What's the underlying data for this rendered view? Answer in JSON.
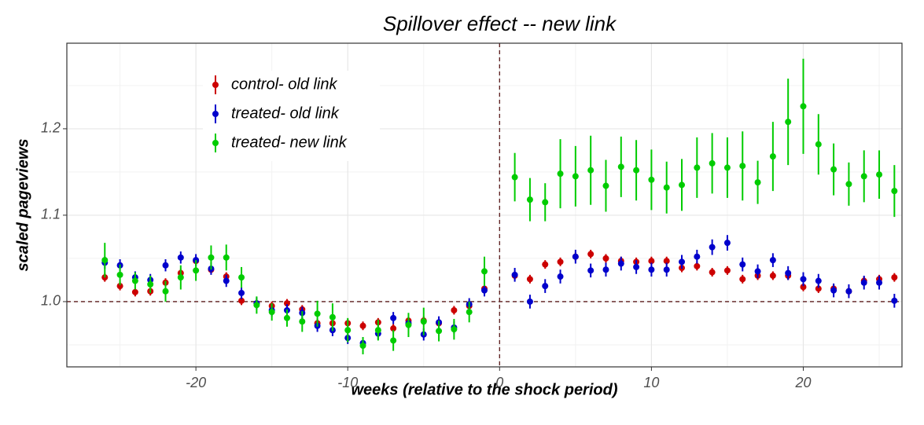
{
  "chart_data": {
    "type": "errorbar-scatter",
    "title": "Spillover effect -- new link",
    "x_label": "weeks (relative to the shock period)",
    "y_label": "scaled pageviews",
    "x": [
      -26,
      -25,
      -24,
      -23,
      -22,
      -21,
      -20,
      -19,
      -18,
      -17,
      -16,
      -15,
      -14,
      -13,
      -12,
      -11,
      -10,
      -9,
      -8,
      -7,
      -6,
      -5,
      -4,
      -3,
      -2,
      -1,
      1,
      2,
      3,
      4,
      5,
      6,
      7,
      8,
      9,
      10,
      11,
      12,
      13,
      14,
      15,
      16,
      17,
      18,
      19,
      20,
      21,
      22,
      23,
      24,
      25,
      26
    ],
    "series": [
      {
        "name": "control- old link",
        "color": "#cc0000",
        "values": [
          1.028,
          1.018,
          1.011,
          1.012,
          1.022,
          1.033,
          1.047,
          1.037,
          1.029,
          1.001,
          0.998,
          0.995,
          0.998,
          0.991,
          0.975,
          0.975,
          0.975,
          0.972,
          0.976,
          0.969,
          0.978,
          0.978,
          0.975,
          0.99,
          0.995,
          1.015,
          1.03,
          1.026,
          1.043,
          1.046,
          1.052,
          1.055,
          1.05,
          1.047,
          1.046,
          1.047,
          1.047,
          1.039,
          1.041,
          1.034,
          1.036,
          1.026,
          1.03,
          1.03,
          1.03,
          1.017,
          1.015,
          1.015,
          1.012,
          1.024,
          1.026,
          1.028
        ],
        "errors": [
          0.005,
          0.005,
          0.005,
          0.005,
          0.005,
          0.005,
          0.005,
          0.005,
          0.005,
          0.005,
          0.005,
          0.005,
          0.005,
          0.005,
          0.005,
          0.005,
          0.005,
          0.005,
          0.005,
          0.005,
          0.005,
          0.005,
          0.005,
          0.005,
          0.005,
          0.005,
          0.005,
          0.005,
          0.005,
          0.005,
          0.005,
          0.005,
          0.005,
          0.005,
          0.005,
          0.005,
          0.005,
          0.005,
          0.005,
          0.005,
          0.005,
          0.005,
          0.005,
          0.005,
          0.005,
          0.005,
          0.005,
          0.005,
          0.005,
          0.005,
          0.005,
          0.005
        ]
      },
      {
        "name": "treated- old link",
        "color": "#0000cc",
        "values": [
          1.045,
          1.042,
          1.028,
          1.025,
          1.042,
          1.051,
          1.048,
          1.038,
          1.024,
          1.01,
          0.998,
          0.99,
          0.99,
          0.987,
          0.972,
          0.967,
          0.958,
          0.952,
          0.963,
          0.981,
          0.975,
          0.962,
          0.976,
          0.97,
          0.997,
          1.013,
          1.031,
          1.0,
          1.018,
          1.029,
          1.052,
          1.036,
          1.037,
          1.044,
          1.04,
          1.037,
          1.037,
          1.046,
          1.052,
          1.063,
          1.068,
          1.043,
          1.035,
          1.048,
          1.033,
          1.026,
          1.024,
          1.013,
          1.012,
          1.022,
          1.022,
          1.001
        ],
        "errors": [
          0.007,
          0.007,
          0.007,
          0.007,
          0.007,
          0.007,
          0.007,
          0.007,
          0.007,
          0.007,
          0.007,
          0.007,
          0.007,
          0.007,
          0.007,
          0.007,
          0.007,
          0.007,
          0.007,
          0.007,
          0.007,
          0.007,
          0.007,
          0.007,
          0.007,
          0.007,
          0.008,
          0.008,
          0.008,
          0.008,
          0.008,
          0.008,
          0.008,
          0.008,
          0.008,
          0.008,
          0.008,
          0.008,
          0.008,
          0.009,
          0.009,
          0.008,
          0.008,
          0.008,
          0.008,
          0.008,
          0.008,
          0.008,
          0.008,
          0.008,
          0.008,
          0.008
        ]
      },
      {
        "name": "treated- new link",
        "color": "#00cc00",
        "values": [
          1.048,
          1.031,
          1.024,
          1.02,
          1.012,
          1.028,
          1.036,
          1.051,
          1.051,
          1.028,
          0.996,
          0.988,
          0.981,
          0.977,
          0.986,
          0.982,
          0.967,
          0.949,
          0.967,
          0.955,
          0.973,
          0.977,
          0.966,
          0.968,
          0.988,
          1.035,
          1.144,
          1.118,
          1.115,
          1.148,
          1.145,
          1.152,
          1.134,
          1.156,
          1.152,
          1.141,
          1.132,
          1.135,
          1.155,
          1.16,
          1.155,
          1.157,
          1.138,
          1.168,
          1.208,
          1.226,
          1.182,
          1.153,
          1.136,
          1.145,
          1.147,
          1.128
        ],
        "errors": [
          0.02,
          0.012,
          0.01,
          0.01,
          0.012,
          0.014,
          0.012,
          0.014,
          0.015,
          0.012,
          0.01,
          0.01,
          0.01,
          0.012,
          0.015,
          0.016,
          0.014,
          0.01,
          0.012,
          0.012,
          0.014,
          0.016,
          0.012,
          0.012,
          0.012,
          0.017,
          0.028,
          0.025,
          0.022,
          0.04,
          0.035,
          0.04,
          0.03,
          0.035,
          0.035,
          0.035,
          0.03,
          0.03,
          0.035,
          0.035,
          0.035,
          0.04,
          0.025,
          0.04,
          0.05,
          0.055,
          0.035,
          0.03,
          0.025,
          0.03,
          0.028,
          0.03
        ]
      }
    ],
    "xlim": [
      -28.5,
      26.5
    ],
    "ylim": [
      0.9245,
      1.299
    ],
    "xticks": [
      -20,
      -10,
      0,
      10,
      20
    ],
    "yticks": [
      1.0,
      1.1,
      1.2
    ],
    "xminor": [
      -25,
      -15,
      -5,
      5,
      15,
      25
    ],
    "yminor": [
      0.95,
      1.05,
      1.15,
      1.25
    ],
    "hline": 1.0,
    "vline": 0,
    "grid": true,
    "legend": "top-left"
  }
}
